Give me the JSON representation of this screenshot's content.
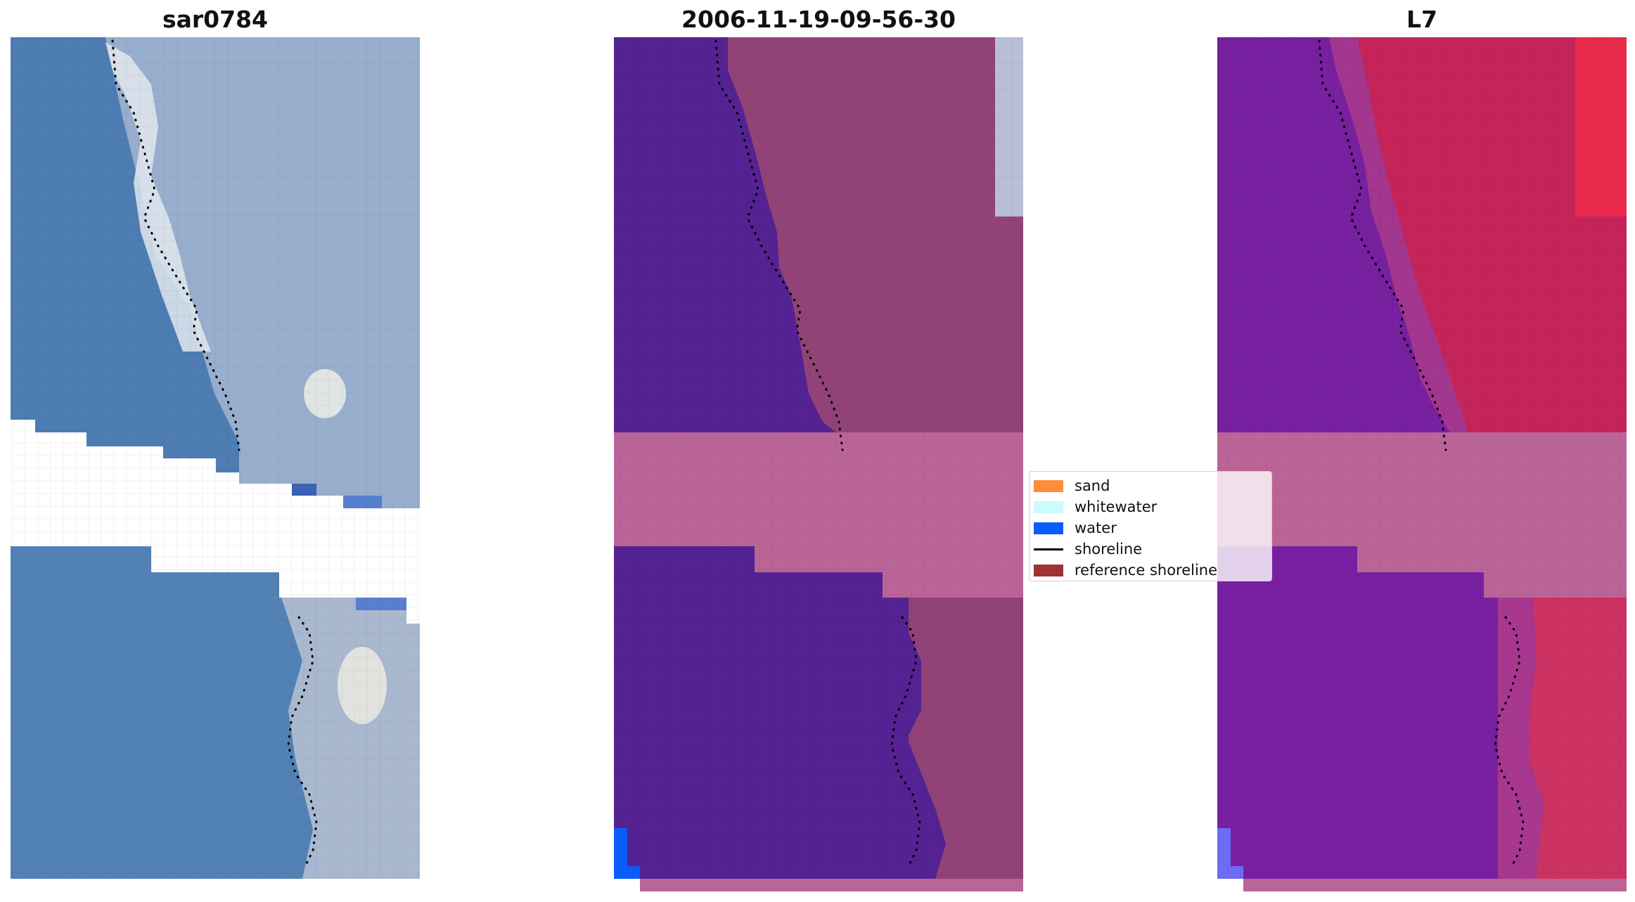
{
  "panels": [
    {
      "title": "sar0784",
      "image": "rgb-true-color-satellite-tile"
    },
    {
      "title": "2006-11-19-09-56-30",
      "image": "classified-overlay-tile"
    },
    {
      "title": "L7",
      "image": "nir-swir-false-color-tile"
    }
  ],
  "legend": {
    "items": [
      {
        "label": "sand",
        "color": "#ff8c3a",
        "kind": "patch"
      },
      {
        "label": "whitewater",
        "color": "#c9fbff",
        "kind": "patch"
      },
      {
        "label": "water",
        "color": "#0a5cff",
        "kind": "patch"
      },
      {
        "label": "shoreline",
        "color": "#000000",
        "kind": "line"
      },
      {
        "label": "reference shoreline",
        "color": "#9c3434",
        "kind": "patch"
      }
    ]
  },
  "colors": {
    "water_class": "#552293",
    "land_tint": "#a0436f",
    "nodata_band": "#ba6497",
    "rgb_water": "#4e7db3",
    "rgb_foam": "#dbe0ea",
    "false_color_water": "#7720a0",
    "false_color_land": "#c82048",
    "pure_water": "#0a5cff"
  }
}
